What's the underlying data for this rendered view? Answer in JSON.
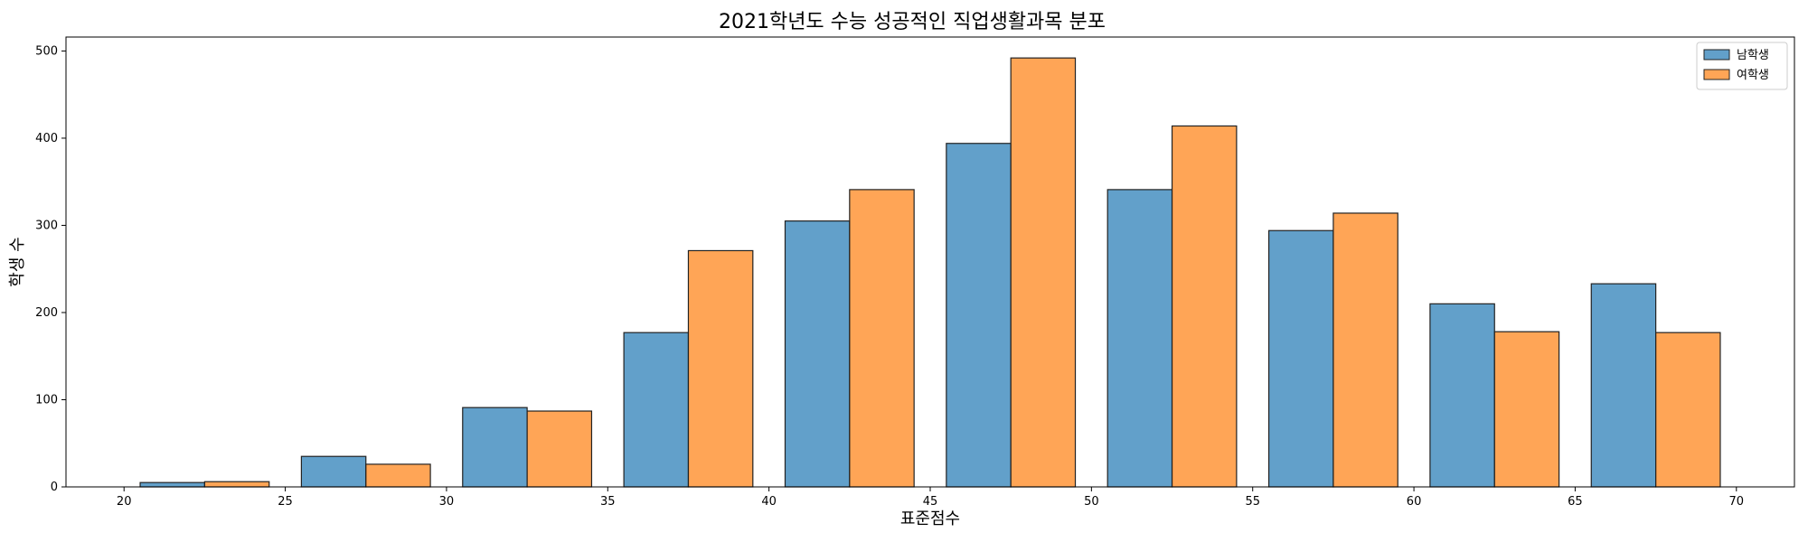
{
  "chart_data": {
    "type": "bar",
    "title": "2021학년도 수능 성공적인 직업생활과목 분포",
    "xlabel": "표준점수",
    "ylabel": "학생 수",
    "xlim": [
      18.2,
      71.8
    ],
    "ylim": [
      0,
      516
    ],
    "xticks": [
      20,
      25,
      30,
      35,
      40,
      45,
      50,
      55,
      60,
      65,
      70
    ],
    "yticks": [
      0,
      100,
      200,
      300,
      400,
      500
    ],
    "bin_edges": [
      20.5,
      25.5,
      30.5,
      35.5,
      40.5,
      45.5,
      50.5,
      55.5,
      60.5,
      65.5,
      70.5
    ],
    "grid": false,
    "legend_position": "top-right",
    "series": [
      {
        "name": "남학생",
        "color": "#1f77b4",
        "values": [
          5,
          35,
          91,
          177,
          305,
          394,
          341,
          294,
          210,
          233
        ]
      },
      {
        "name": "여학생",
        "color": "#ff7f0e",
        "values": [
          6,
          26,
          87,
          271,
          341,
          492,
          414,
          314,
          178,
          177
        ]
      }
    ]
  }
}
